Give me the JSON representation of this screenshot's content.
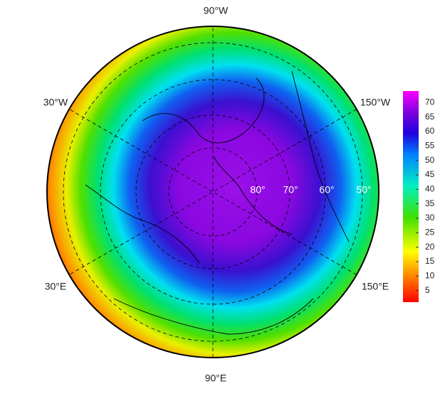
{
  "map": {
    "longitude_labels": [
      "90°W",
      "30°W",
      "150°W",
      "30°E",
      "150°E",
      "90°E"
    ],
    "latitude_labels": [
      "80°",
      "70°",
      "60°",
      "50°"
    ]
  },
  "colorbar": {
    "ylim": [
      1,
      74
    ],
    "yticks": [
      5,
      10,
      15,
      20,
      25,
      30,
      35,
      40,
      45,
      50,
      55,
      60,
      65,
      70
    ]
  }
}
